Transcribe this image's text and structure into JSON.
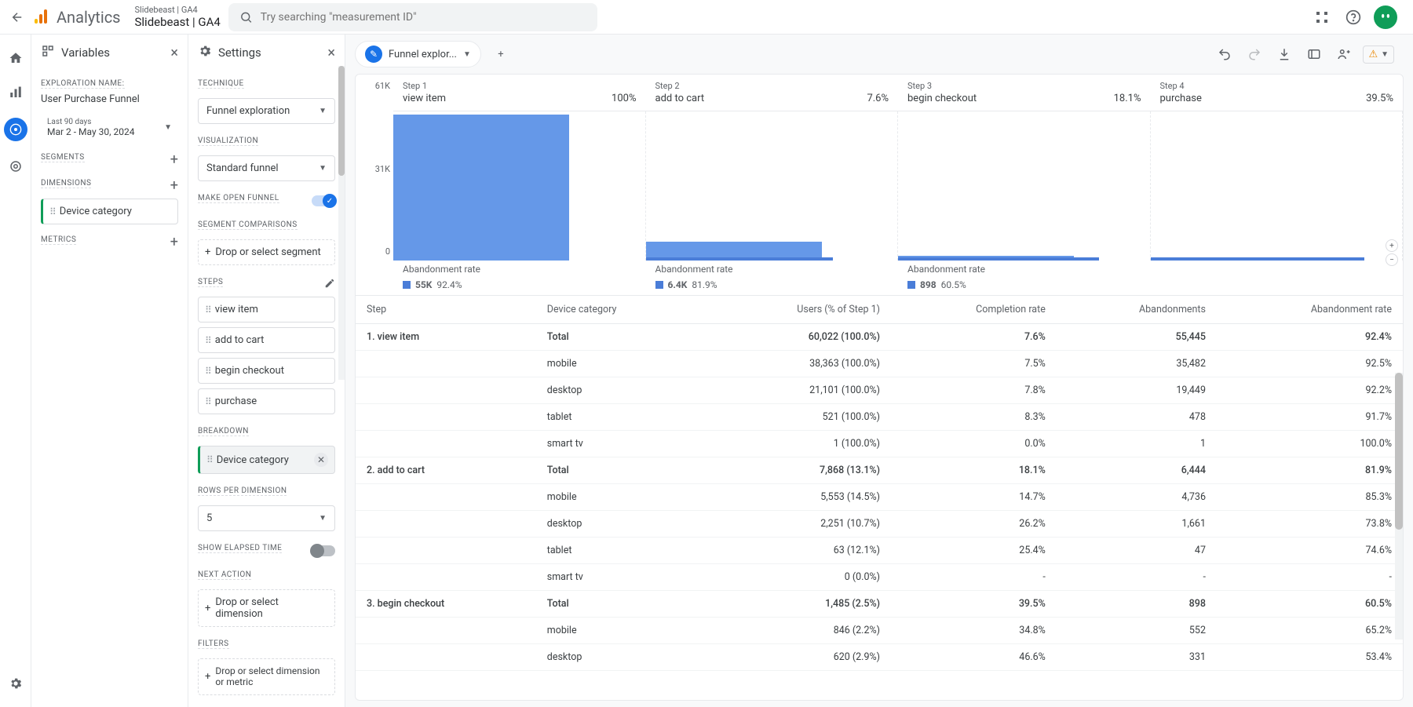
{
  "header": {
    "analytics_label": "Analytics",
    "property_line1": "Slidebeast | GA4",
    "property_line2": "Slidebeast | GA4",
    "search_placeholder": "Try searching \"measurement ID\""
  },
  "variables": {
    "title": "Variables",
    "exploration_name_label": "EXPLORATION NAME:",
    "exploration_name": "User Purchase Funnel",
    "date_preset": "Last 90 days",
    "date_range": "Mar 2 - May 30, 2024",
    "segments_label": "SEGMENTS",
    "dimensions_label": "DIMENSIONS",
    "dimension_chip": "Device category",
    "metrics_label": "METRICS"
  },
  "settings": {
    "title": "Settings",
    "technique_label": "TECHNIQUE",
    "technique_value": "Funnel exploration",
    "visualization_label": "VISUALIZATION",
    "visualization_value": "Standard funnel",
    "open_funnel_label": "MAKE OPEN FUNNEL",
    "segment_comp_label": "SEGMENT COMPARISONS",
    "segment_drop": "Drop or select segment",
    "steps_label": "STEPS",
    "steps": [
      "view item",
      "add to cart",
      "begin checkout",
      "purchase"
    ],
    "breakdown_label": "BREAKDOWN",
    "breakdown_chip": "Device category",
    "rows_per_dim_label": "ROWS PER DIMENSION",
    "rows_per_dim_value": "5",
    "elapsed_label": "SHOW ELAPSED TIME",
    "next_action_label": "NEXT ACTION",
    "next_action_drop": "Drop or select dimension",
    "filters_label": "FILTERS",
    "filters_drop": "Drop or select dimension or metric"
  },
  "tab": {
    "label": "Funnel explor..."
  },
  "funnel": {
    "y_ticks": [
      "61K",
      "31K",
      "0"
    ],
    "steps": [
      {
        "num": "Step 1",
        "name": "view item",
        "pct": "100%",
        "bar_height_pct": 100,
        "bar_width_pct": 70,
        "abandon_label": "Abandonment rate",
        "abandon_val": "55K",
        "abandon_pct": "92.4%"
      },
      {
        "num": "Step 2",
        "name": "add to cart",
        "pct": "7.6%",
        "bar_height_pct": 13,
        "bar_width_pct": 70,
        "thin_width_pct": 18,
        "abandon_label": "Abandonment rate",
        "abandon_val": "6.4K",
        "abandon_pct": "81.9%"
      },
      {
        "num": "Step 3",
        "name": "begin checkout",
        "pct": "18.1%",
        "bar_height_pct": 3,
        "bar_width_pct": 70,
        "thin_width_pct": 40,
        "abandon_label": "Abandonment rate",
        "abandon_val": "898",
        "abandon_pct": "60.5%"
      },
      {
        "num": "Step 4",
        "name": "purchase",
        "pct": "39.5%",
        "bar_height_pct": 2,
        "bar_width_pct": 70,
        "thin_width_pct": 60
      }
    ],
    "colors": {
      "bar": "#6598e8",
      "thin": "#4a7dd8"
    }
  },
  "table": {
    "headers": [
      "Step",
      "Device category",
      "Users (% of Step 1)",
      "Completion rate",
      "Abandonments",
      "Abandonment rate"
    ],
    "rows": [
      {
        "bold": true,
        "cells": [
          "1. view item",
          "Total",
          "60,022 (100.0%)",
          "7.6%",
          "55,445",
          "92.4%"
        ]
      },
      {
        "bold": false,
        "cells": [
          "",
          "mobile",
          "38,363 (100.0%)",
          "7.5%",
          "35,482",
          "92.5%"
        ]
      },
      {
        "bold": false,
        "cells": [
          "",
          "desktop",
          "21,101 (100.0%)",
          "7.8%",
          "19,449",
          "92.2%"
        ]
      },
      {
        "bold": false,
        "cells": [
          "",
          "tablet",
          "521 (100.0%)",
          "8.3%",
          "478",
          "91.7%"
        ]
      },
      {
        "bold": false,
        "cells": [
          "",
          "smart tv",
          "1 (100.0%)",
          "0.0%",
          "1",
          "100.0%"
        ]
      },
      {
        "bold": true,
        "cells": [
          "2. add to cart",
          "Total",
          "7,868 (13.1%)",
          "18.1%",
          "6,444",
          "81.9%"
        ]
      },
      {
        "bold": false,
        "cells": [
          "",
          "mobile",
          "5,553 (14.5%)",
          "14.7%",
          "4,736",
          "85.3%"
        ]
      },
      {
        "bold": false,
        "cells": [
          "",
          "desktop",
          "2,251 (10.7%)",
          "26.2%",
          "1,661",
          "73.8%"
        ]
      },
      {
        "bold": false,
        "cells": [
          "",
          "tablet",
          "63 (12.1%)",
          "25.4%",
          "47",
          "74.6%"
        ]
      },
      {
        "bold": false,
        "cells": [
          "",
          "smart tv",
          "0 (0.0%)",
          "-",
          "-",
          "-"
        ]
      },
      {
        "bold": true,
        "cells": [
          "3. begin checkout",
          "Total",
          "1,485 (2.5%)",
          "39.5%",
          "898",
          "60.5%"
        ]
      },
      {
        "bold": false,
        "cells": [
          "",
          "mobile",
          "846 (2.2%)",
          "34.8%",
          "552",
          "65.2%"
        ]
      },
      {
        "bold": false,
        "cells": [
          "",
          "desktop",
          "620 (2.9%)",
          "46.6%",
          "331",
          "53.4%"
        ]
      }
    ]
  }
}
